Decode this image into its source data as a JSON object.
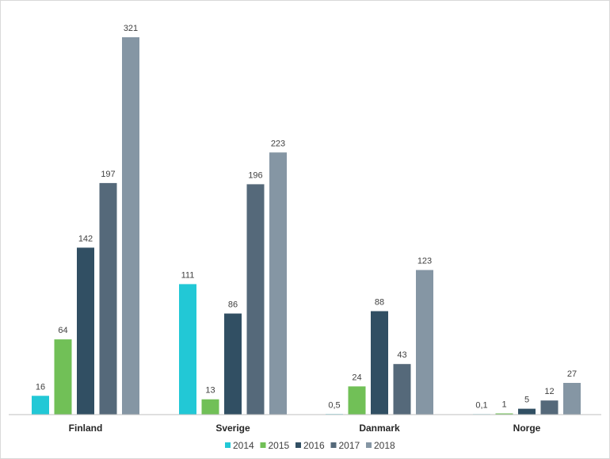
{
  "chart_data": {
    "type": "bar",
    "categories": [
      "Finland",
      "Sverige",
      "Danmark",
      "Norge"
    ],
    "series": [
      {
        "name": "2014",
        "color": "#22c8d6",
        "values": [
          16,
          111,
          0.5,
          0.1
        ],
        "labels": [
          "16",
          "111",
          "0,5",
          "0,1"
        ]
      },
      {
        "name": "2015",
        "color": "#71c057",
        "values": [
          64,
          13,
          24,
          1
        ],
        "labels": [
          "64",
          "13",
          "24",
          "1"
        ]
      },
      {
        "name": "2016",
        "color": "#314f63",
        "values": [
          142,
          86,
          88,
          5
        ],
        "labels": [
          "142",
          "86",
          "88",
          "5"
        ]
      },
      {
        "name": "2017",
        "color": "#55697a",
        "values": [
          197,
          196,
          43,
          12
        ],
        "labels": [
          "197",
          "196",
          "43",
          "12"
        ]
      },
      {
        "name": "2018",
        "color": "#8596a4",
        "values": [
          321,
          223,
          123,
          27
        ],
        "labels": [
          "321",
          "223",
          "123",
          "27"
        ]
      }
    ],
    "title": "",
    "xlabel": "",
    "ylabel": "",
    "ylim": [
      0,
      321
    ],
    "grid": false,
    "legend": "bottom"
  }
}
